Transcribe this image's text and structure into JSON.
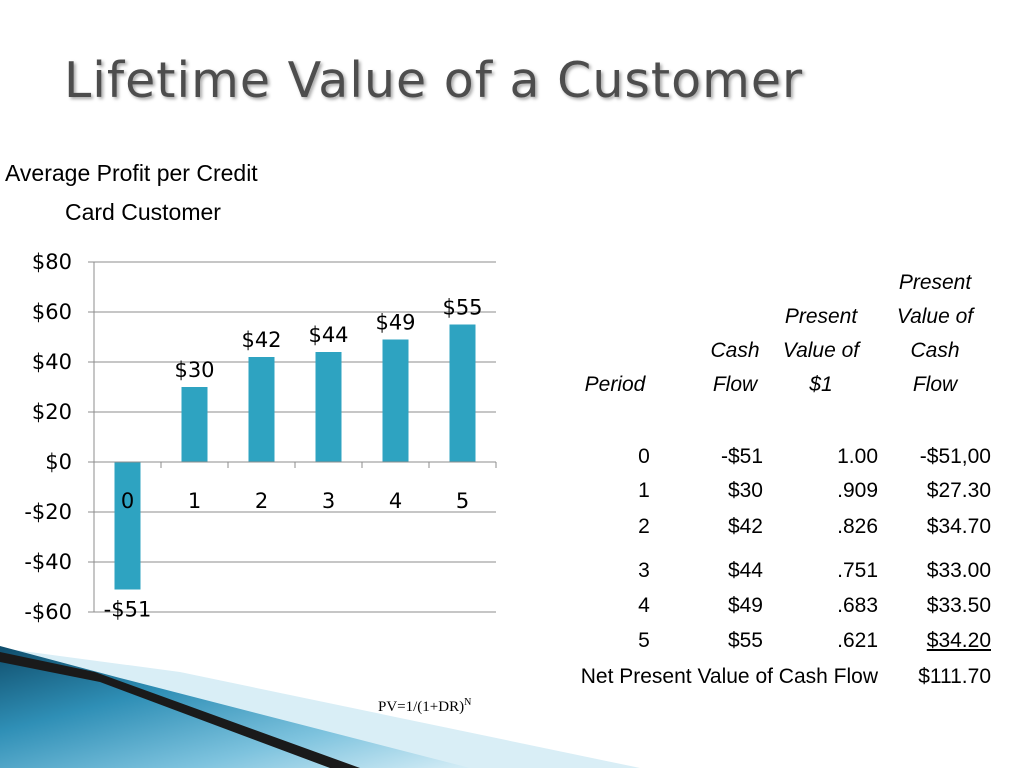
{
  "title": "Lifetime Value of a Customer",
  "chart_data": {
    "type": "bar",
    "title": "Average Profit per Credit Card Customer",
    "title_lines": [
      "Average Profit per Credit",
      "Card Customer"
    ],
    "categories": [
      "0",
      "1",
      "2",
      "3",
      "4",
      "5"
    ],
    "values": [
      -51,
      30,
      42,
      44,
      49,
      55
    ],
    "data_labels": [
      "-$51",
      "$30",
      "$42",
      "$44",
      "$49",
      "$55"
    ],
    "y_ticks": [
      80,
      60,
      40,
      20,
      0,
      -20,
      -40,
      -60
    ],
    "y_tick_labels": [
      "$80",
      "$60",
      "$40",
      "$20",
      "$0",
      "-$20",
      "-$40",
      "-$60"
    ],
    "ylim": [
      -60,
      80
    ],
    "grid": true,
    "bar_color": "#2ea3c1"
  },
  "table": {
    "headers": {
      "period": [
        "Period"
      ],
      "cash_flow": [
        "Cash",
        "Flow"
      ],
      "pv_factor": [
        "Present",
        "Value of",
        "$1"
      ],
      "pv_cash": [
        "Present",
        "Value of",
        "Cash",
        "Flow"
      ]
    },
    "rows": [
      {
        "period": "0",
        "cash_flow": "-$51",
        "pv_factor": "1.00",
        "pv_cash": "-$51,00"
      },
      {
        "period": "1",
        "cash_flow": "$30",
        "pv_factor": ".909",
        "pv_cash": "$27.30"
      },
      {
        "period": "2",
        "cash_flow": "$42",
        "pv_factor": ".826",
        "pv_cash": "$34.70"
      },
      {
        "period": "3",
        "cash_flow": "$44",
        "pv_factor": ".751",
        "pv_cash": "$33.00"
      },
      {
        "period": "4",
        "cash_flow": "$49",
        "pv_factor": ".683",
        "pv_cash": "$33.50"
      },
      {
        "period": "5",
        "cash_flow": "$55",
        "pv_factor": ".621",
        "pv_cash": "$34.20"
      }
    ],
    "total_label": "Net Present Value of Cash Flow",
    "total_value": "$111.70"
  },
  "formula": {
    "main": "PV=1/(1+DR)",
    "exponent": "N"
  }
}
